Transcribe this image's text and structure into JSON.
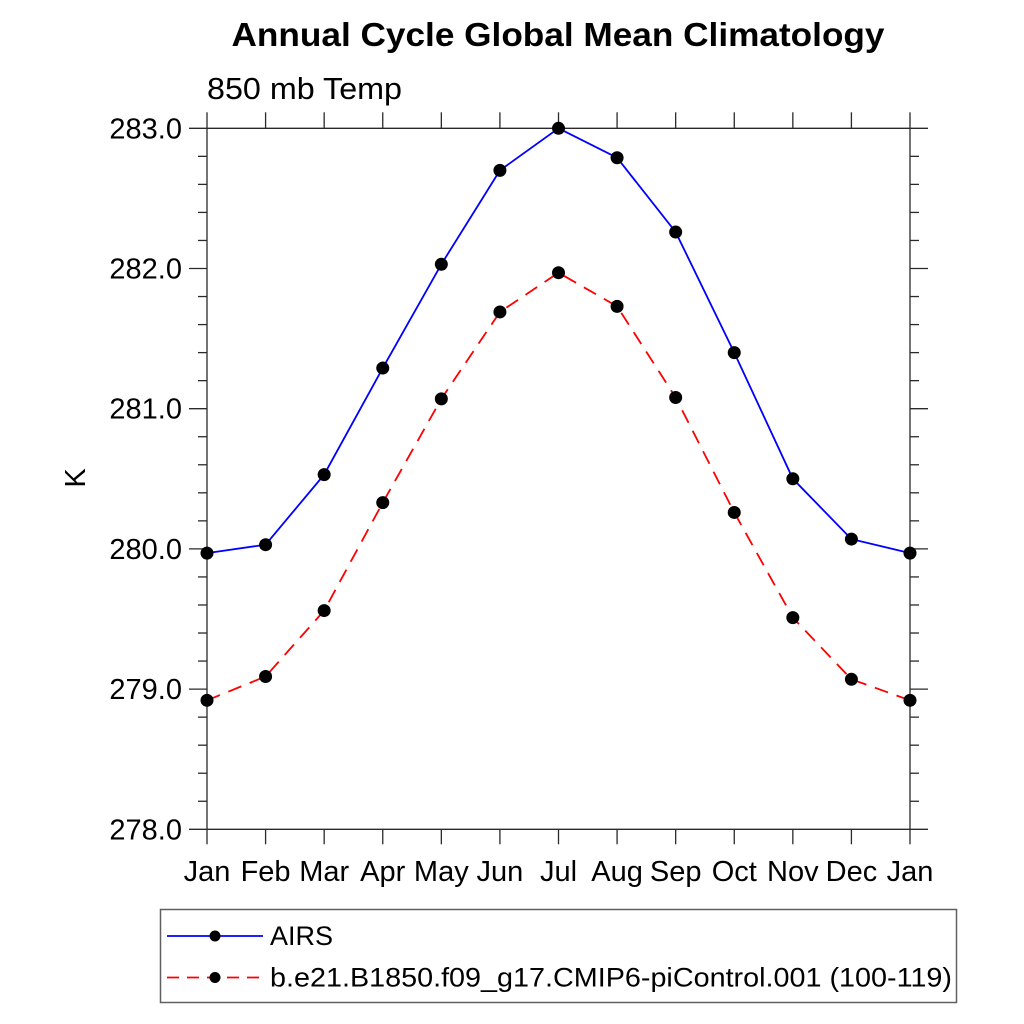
{
  "chart_data": {
    "type": "line",
    "title": "Annual Cycle Global Mean Climatology",
    "subtitle": "850 mb Temp",
    "ylabel": "K",
    "xlabel": "",
    "categories": [
      "Jan",
      "Feb",
      "Mar",
      "Apr",
      "May",
      "Jun",
      "Jul",
      "Aug",
      "Sep",
      "Oct",
      "Nov",
      "Dec",
      "Jan"
    ],
    "ylim": [
      278.0,
      283.0
    ],
    "ytick_interval": 1.0,
    "ytick_minor_interval": 0.2,
    "ytick_label_format": "one-decimal",
    "grid": false,
    "legend_position": "bottom-left-box",
    "axis_color": "#2a2a2a",
    "marker": "filled-circle",
    "marker_color": "#000000",
    "series": [
      {
        "name": "AIRS",
        "color": "#0000ff",
        "line_style": "solid",
        "values": [
          279.97,
          280.03,
          280.53,
          281.29,
          282.03,
          282.7,
          283.0,
          282.79,
          282.26,
          281.4,
          280.5,
          280.07,
          279.97
        ]
      },
      {
        "name": "b.e21.B1850.f09_g17.CMIP6-piControl.001 (100-119)",
        "color": "#ff0000",
        "line_style": "dashed",
        "values": [
          278.92,
          279.09,
          279.56,
          280.33,
          281.07,
          281.69,
          281.97,
          281.73,
          281.08,
          280.26,
          279.51,
          279.07,
          278.92
        ]
      }
    ]
  }
}
